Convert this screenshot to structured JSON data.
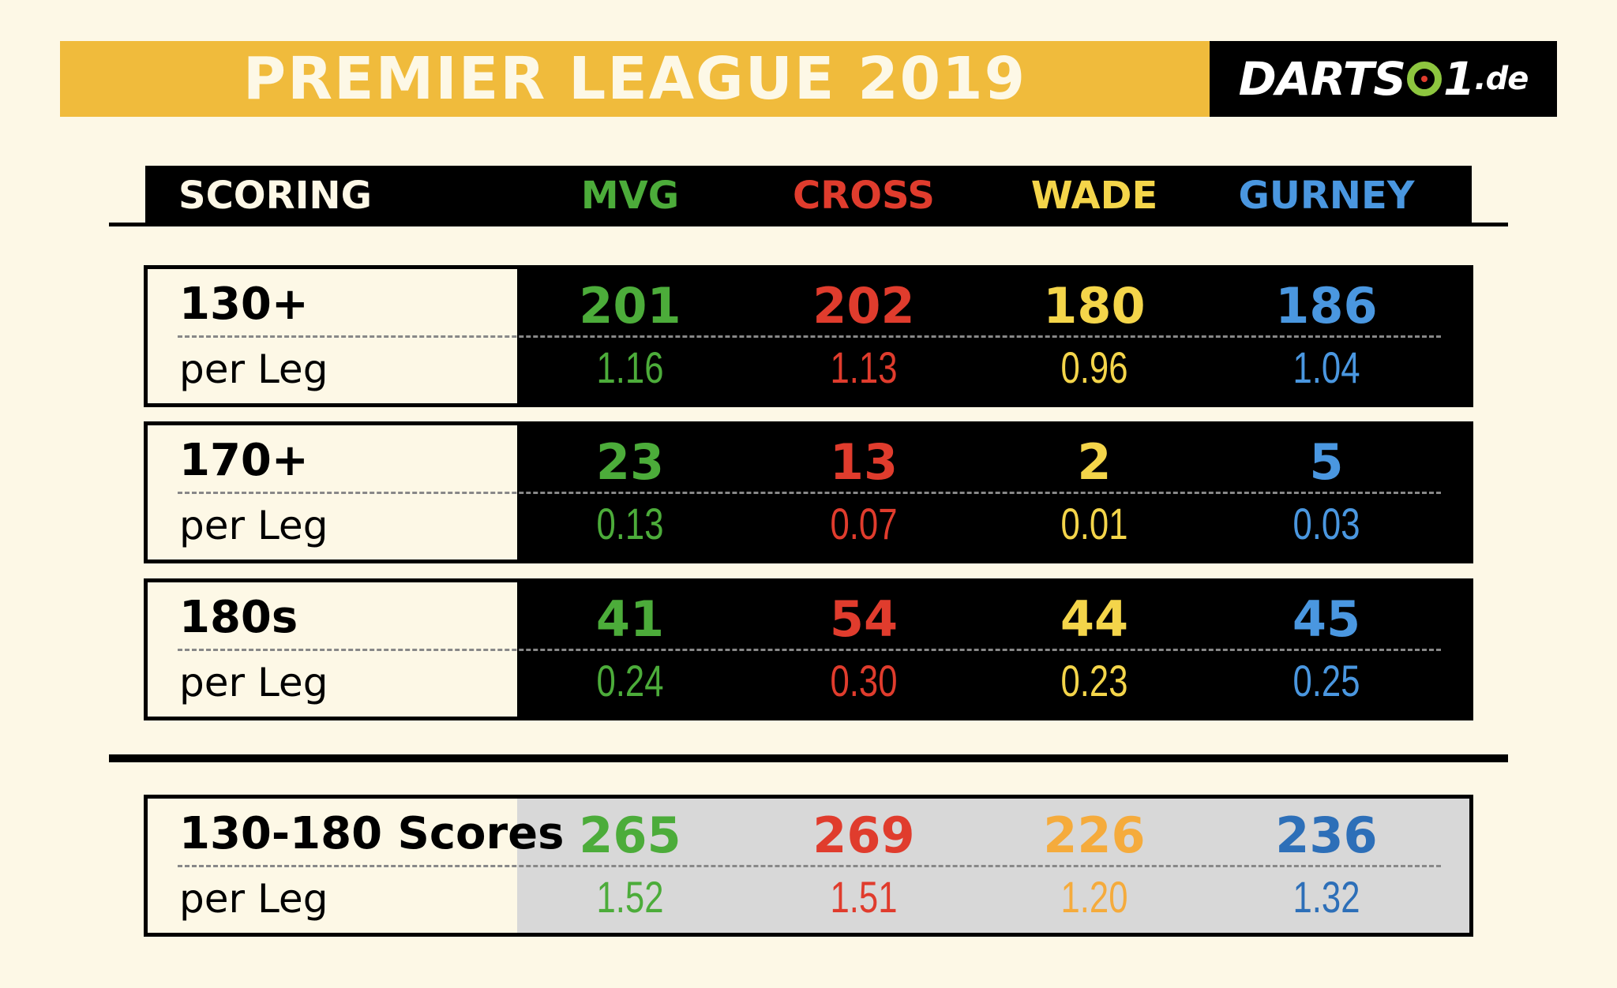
{
  "banner": {
    "title": "PREMIER LEAGUE 2019"
  },
  "logo": {
    "part1": "DARTS",
    "part2": "1",
    "part3": ".de"
  },
  "colors": {
    "background": "#fdf8e6",
    "banner": "#f0bb3c",
    "mvg": "#4cac3a",
    "cross": "#e03c2d",
    "wade": "#f4d54a",
    "wade_alt": "#f5ab3c",
    "gurney": "#4a97e0",
    "gurney_alt": "#2d6fb8"
  },
  "chart_data": {
    "type": "table",
    "title": "SCORING",
    "columns": [
      "MVG",
      "CROSS",
      "WADE",
      "GURNEY"
    ],
    "rows": [
      {
        "label": "130+",
        "values": [
          "201",
          "202",
          "180",
          "186"
        ],
        "sub_label": "per Leg",
        "sub_values": [
          "1.16",
          "1.13",
          "0.96",
          "1.04"
        ]
      },
      {
        "label": "170+",
        "values": [
          "23",
          "13",
          "2",
          "5"
        ],
        "sub_label": "per Leg",
        "sub_values": [
          "0.13",
          "0.07",
          "0.01",
          "0.03"
        ]
      },
      {
        "label": "180s",
        "values": [
          "41",
          "54",
          "44",
          "45"
        ],
        "sub_label": "per Leg",
        "sub_values": [
          "0.24",
          "0.30",
          "0.23",
          "0.25"
        ]
      },
      {
        "label": "130-180 Scores",
        "values": [
          "265",
          "269",
          "226",
          "236"
        ],
        "sub_label": "per Leg",
        "sub_values": [
          "1.52",
          "1.51",
          "1.20",
          "1.32"
        ]
      }
    ]
  }
}
